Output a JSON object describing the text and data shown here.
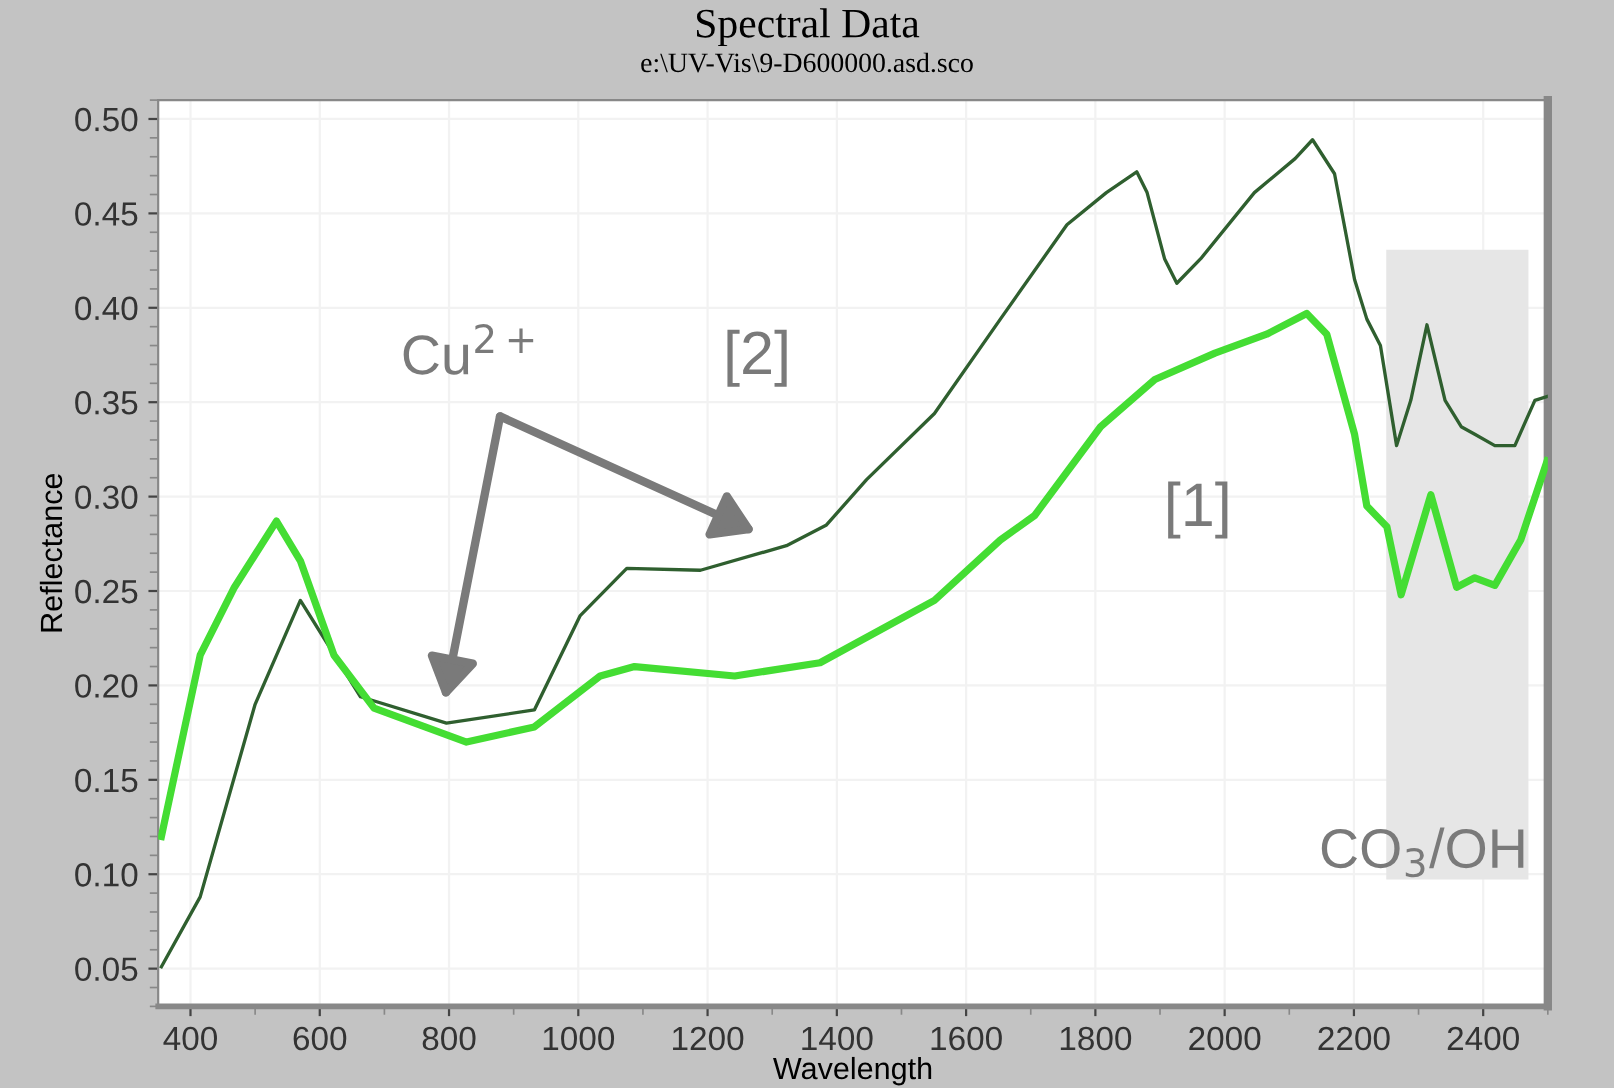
{
  "chart_data": {
    "type": "line",
    "title": "Spectral Data",
    "subtitle": "e:\\UV-Vis\\9-D600000.asd.sco",
    "xlabel": "Wavelength",
    "ylabel": "Reflectance",
    "xlim": [
      350,
      2500
    ],
    "ylim": [
      0.03,
      0.51
    ],
    "xticks": [
      400,
      600,
      800,
      1000,
      1200,
      1400,
      1600,
      1800,
      2000,
      2200,
      2400
    ],
    "yticks": [
      {
        "value": 0.05,
        "label": "0.05"
      },
      {
        "value": 0.1,
        "label": "0.10"
      },
      {
        "value": 0.15,
        "label": "0.15"
      },
      {
        "value": 0.2,
        "label": "0.20"
      },
      {
        "value": 0.25,
        "label": "0.25"
      },
      {
        "value": 0.3,
        "label": "0.30"
      },
      {
        "value": 0.35,
        "label": "0.35"
      },
      {
        "value": 0.4,
        "label": "0.40"
      },
      {
        "value": 0.45,
        "label": "0.45"
      },
      {
        "value": 0.5,
        "label": "0.50"
      }
    ],
    "grid": true,
    "marker": "none",
    "line_style": "solid",
    "series": [
      {
        "name": "[2]",
        "color": "#2f5f2f",
        "x": [
          355,
          415,
          500,
          570,
          663,
          796,
          932,
          1003,
          1075,
          1189,
          1322,
          1384,
          1446,
          1551,
          1653,
          1756,
          1817,
          1864,
          1880,
          1907,
          1926,
          1963,
          2046,
          2109,
          2136,
          2170,
          2201,
          2220,
          2241,
          2266,
          2288,
          2313,
          2341,
          2366,
          2387,
          2418,
          2449,
          2480,
          2499
        ],
        "values": [
          0.051,
          0.088,
          0.19,
          0.245,
          0.194,
          0.18,
          0.187,
          0.237,
          0.262,
          0.261,
          0.274,
          0.285,
          0.309,
          0.344,
          0.394,
          0.444,
          0.461,
          0.472,
          0.461,
          0.426,
          0.413,
          0.426,
          0.461,
          0.479,
          0.489,
          0.471,
          0.415,
          0.394,
          0.38,
          0.327,
          0.351,
          0.391,
          0.351,
          0.337,
          0.333,
          0.327,
          0.327,
          0.351,
          0.353
        ]
      },
      {
        "name": "[1]",
        "color": "#44dd33",
        "x": [
          355,
          415,
          468,
          533,
          570,
          622,
          684,
          827,
          932,
          1034,
          1087,
          1242,
          1374,
          1551,
          1653,
          1706,
          1808,
          1892,
          1985,
          2065,
          2127,
          2158,
          2201,
          2220,
          2251,
          2273,
          2319,
          2359,
          2387,
          2418,
          2458,
          2499
        ],
        "values": [
          0.12,
          0.216,
          0.252,
          0.287,
          0.266,
          0.216,
          0.188,
          0.17,
          0.178,
          0.205,
          0.21,
          0.205,
          0.212,
          0.245,
          0.277,
          0.29,
          0.337,
          0.362,
          0.376,
          0.386,
          0.397,
          0.386,
          0.333,
          0.295,
          0.284,
          0.248,
          0.301,
          0.252,
          0.257,
          0.253,
          0.277,
          0.319
        ]
      }
    ],
    "bands": [
      {
        "axis": "x",
        "from": 2250,
        "to": 2470,
        "label": "CO$_{3}$/OH",
        "color": "#e6e6e6"
      }
    ],
    "annotations": [
      "Cu$^{2+}$"
    ]
  }
}
